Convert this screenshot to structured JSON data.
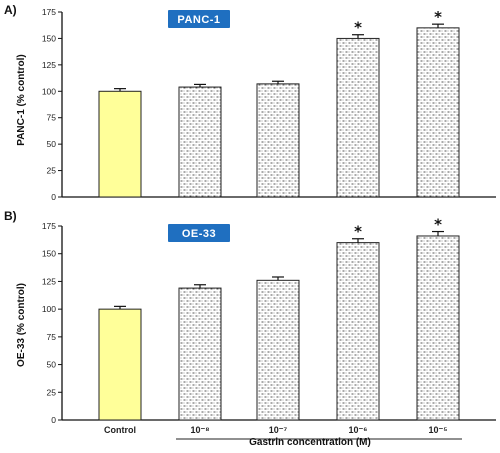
{
  "chart_data": [
    {
      "type": "bar",
      "panel_label": "A)",
      "badge": "PANC-1",
      "ylabel": "PANC-1 (% control)",
      "ylim": [
        0,
        175
      ],
      "yticks": [
        0,
        25,
        50,
        75,
        100,
        125,
        150,
        175
      ],
      "categories": [
        "Control",
        "10⁻⁸",
        "10⁻⁷",
        "10⁻⁶",
        "10⁻⁵"
      ],
      "values": [
        100,
        104,
        107,
        150,
        160
      ],
      "errors": [
        2.5,
        2.5,
        2.5,
        3.5,
        3.5
      ],
      "significant": [
        false,
        false,
        false,
        true,
        true
      ],
      "significance_mark": "*",
      "colors": [
        "#ffff99",
        "pattern",
        "pattern",
        "pattern",
        "pattern"
      ]
    },
    {
      "type": "bar",
      "panel_label": "B)",
      "badge": "OE-33",
      "ylabel": "OE-33 (% control)",
      "ylim": [
        0,
        175
      ],
      "yticks": [
        0,
        25,
        50,
        75,
        100,
        125,
        150,
        175
      ],
      "categories": [
        "Control",
        "10⁻⁸",
        "10⁻⁷",
        "10⁻⁶",
        "10⁻⁵"
      ],
      "values": [
        100,
        119,
        126,
        160,
        166
      ],
      "errors": [
        2.5,
        3,
        3,
        3.5,
        4
      ],
      "significant": [
        false,
        false,
        false,
        true,
        true
      ],
      "significance_mark": "*",
      "colors": [
        "#ffff99",
        "pattern",
        "pattern",
        "pattern",
        "pattern"
      ],
      "xlabel": "Gastrin concentration (M)"
    }
  ],
  "colors": {
    "control_fill": "#ffff99",
    "badge_fill": "#1f6fc0",
    "axis": "#111111",
    "pattern_fill": "#ffffff",
    "pattern_dots": "#444444"
  }
}
